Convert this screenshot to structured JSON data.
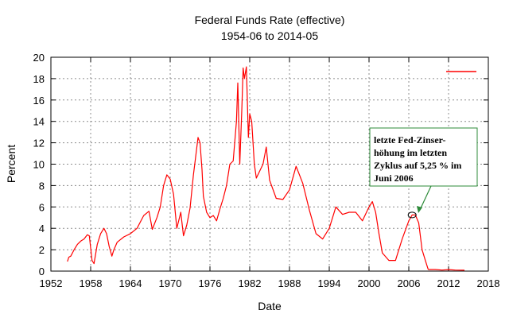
{
  "chart_data": {
    "type": "line",
    "title": "Federal Funds Rate (effective)",
    "subtitle": "1954-06 to 2014-05",
    "xlabel": "Date",
    "ylabel": "Percent",
    "xlim": [
      1952,
      2018
    ],
    "ylim": [
      0,
      20
    ],
    "xticks": [
      1952,
      1958,
      1964,
      1970,
      1976,
      1982,
      1988,
      1994,
      2000,
      2006,
      2012,
      2018
    ],
    "yticks": [
      0,
      2,
      4,
      6,
      8,
      10,
      12,
      14,
      16,
      18,
      20
    ],
    "grid": true,
    "legend": "top-right",
    "series": [
      {
        "name": "",
        "color": "#ff0000",
        "x": [
          1954.5,
          1954.7,
          1955.0,
          1955.5,
          1956.0,
          1956.5,
          1957.0,
          1957.5,
          1957.8,
          1958.2,
          1958.5,
          1959.0,
          1959.5,
          1960.0,
          1960.4,
          1960.8,
          1961.2,
          1961.5,
          1962.0,
          1963.0,
          1964.0,
          1965.0,
          1966.0,
          1966.8,
          1967.3,
          1968.0,
          1968.5,
          1969.0,
          1969.5,
          1970.0,
          1970.5,
          1971.0,
          1971.2,
          1971.6,
          1972.0,
          1972.5,
          1973.0,
          1973.5,
          1973.8,
          1974.2,
          1974.5,
          1974.8,
          1975.0,
          1975.5,
          1976.0,
          1976.5,
          1977.0,
          1977.5,
          1978.0,
          1978.5,
          1979.0,
          1979.5,
          1980.0,
          1980.2,
          1980.5,
          1980.8,
          1981.0,
          1981.2,
          1981.5,
          1981.8,
          1982.0,
          1982.3,
          1982.7,
          1983.0,
          1984.0,
          1984.5,
          1985.0,
          1986.0,
          1987.0,
          1988.0,
          1989.0,
          1989.5,
          1990.0,
          1991.0,
          1992.0,
          1993.0,
          1994.0,
          1995.0,
          1996.0,
          1997.0,
          1998.0,
          1999.0,
          2000.0,
          2000.5,
          2001.0,
          2001.5,
          2002.0,
          2003.0,
          2004.0,
          2005.0,
          2006.0,
          2006.5,
          2007.0,
          2007.5,
          2008.0,
          2008.5,
          2008.9,
          2009.0,
          2010.0,
          2011.0,
          2012.0,
          2013.0,
          2014.4
        ],
        "y": [
          0.9,
          1.3,
          1.4,
          2.0,
          2.5,
          2.8,
          3.0,
          3.4,
          3.3,
          1.0,
          0.7,
          2.5,
          3.5,
          4.0,
          3.5,
          2.3,
          1.4,
          2.0,
          2.7,
          3.2,
          3.5,
          4.0,
          5.2,
          5.6,
          3.9,
          5.0,
          6.0,
          8.0,
          9.0,
          8.6,
          7.2,
          4.0,
          4.5,
          5.5,
          3.3,
          4.3,
          5.9,
          9.0,
          10.5,
          12.5,
          12.0,
          9.5,
          7.0,
          5.5,
          5.0,
          5.2,
          4.7,
          5.8,
          6.8,
          8.0,
          10.0,
          10.3,
          14.0,
          17.6,
          10.0,
          15.0,
          19.0,
          18.0,
          19.1,
          12.5,
          14.7,
          14.0,
          10.0,
          8.7,
          10.0,
          11.6,
          8.5,
          6.8,
          6.7,
          7.6,
          9.8,
          9.0,
          8.2,
          5.7,
          3.5,
          3.0,
          4.0,
          6.0,
          5.3,
          5.5,
          5.5,
          4.7,
          6.0,
          6.5,
          5.5,
          3.5,
          1.7,
          1.0,
          1.0,
          3.0,
          4.7,
          5.25,
          5.25,
          4.5,
          2.0,
          1.0,
          0.2,
          0.15,
          0.15,
          0.1,
          0.14,
          0.1,
          0.08
        ]
      }
    ],
    "annotation": {
      "lines": [
        "letzte Fed-Zinser-",
        "höhung im letzten",
        "Zyklus auf 5,25 % im",
        "Juni 2006"
      ],
      "target_x": 2006.5,
      "target_y": 5.25
    }
  }
}
